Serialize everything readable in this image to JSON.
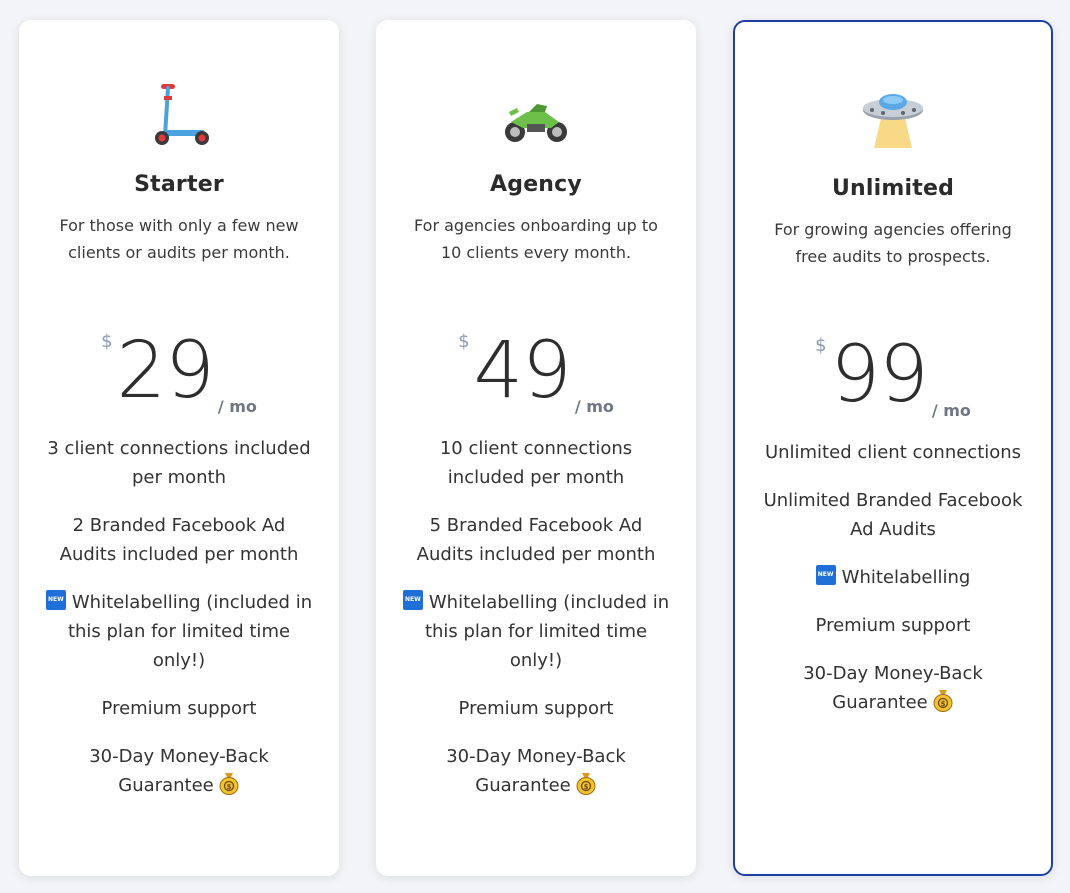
{
  "plans": [
    {
      "name": "Starter",
      "description": "For those with only a few new clients or audits per month.",
      "currency": "$",
      "price": "29",
      "period": "/ mo",
      "icon": "kick-scooter-icon",
      "features": [
        "3 client connections included per month",
        "2 Branded Facebook Ad Audits included per month",
        "Whitelabelling (included in this plan for limited time only!)",
        "Premium support",
        "30-Day Money-Back Guarantee"
      ]
    },
    {
      "name": "Agency",
      "description": "For agencies onboarding up to 10 clients every month.",
      "currency": "$",
      "price": "49",
      "period": "/ mo",
      "icon": "motorcycle-icon",
      "features": [
        "10 client connections included per month",
        "5 Branded Facebook Ad Audits included per month",
        "Whitelabelling (included in this plan for limited time only!)",
        "Premium support",
        "30-Day Money-Back Guarantee"
      ]
    },
    {
      "name": "Unlimited",
      "description": "For growing agencies offering free audits to prospects.",
      "currency": "$",
      "price": "99",
      "period": "/ mo",
      "icon": "flying-saucer-icon",
      "features": [
        "Unlimited client connections",
        "Unlimited Branded Facebook Ad Audits",
        "Whitelabelling",
        "Premium support",
        "30-Day Money-Back Guarantee"
      ]
    }
  ],
  "badge_new_text": "NEW",
  "colors": {
    "highlight_border": "#1f3fa6",
    "currency": "#8f9bb3",
    "new_badge": "#1f6fd6"
  }
}
